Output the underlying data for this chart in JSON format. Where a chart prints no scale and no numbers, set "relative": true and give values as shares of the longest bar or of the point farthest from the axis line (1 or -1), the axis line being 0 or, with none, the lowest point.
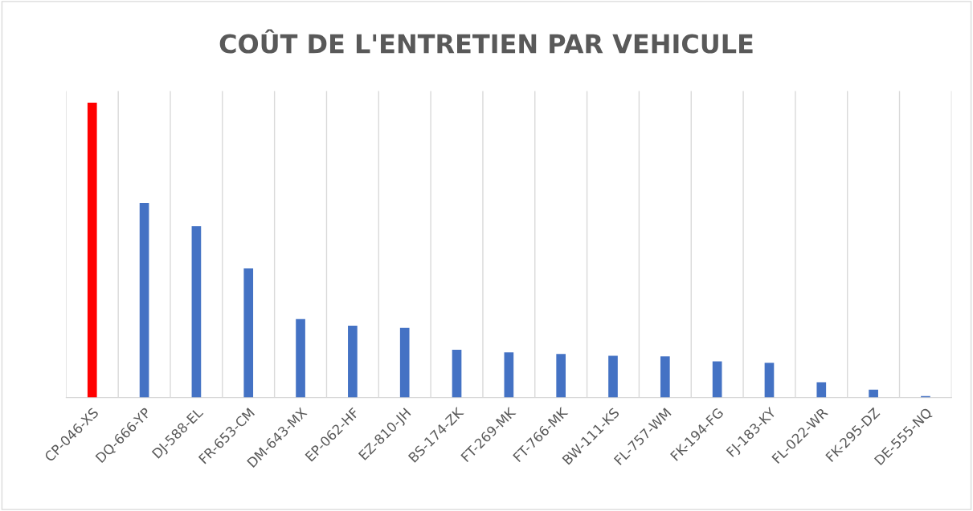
{
  "chart_data": {
    "type": "bar",
    "title": "COÛT DE L'ENTRETIEN PAR VEHICULE",
    "relative": true,
    "grid": "x",
    "categories": [
      "CP-046-XS",
      "DQ-666-YP",
      "DJ-588-EL",
      "FR-653-CM",
      "DM-643-MX",
      "EP-062-HF",
      "EZ-810-JH",
      "BS-174-ZK",
      "FT-269-MK",
      "FT-766-MK",
      "BW-111-KS",
      "FL-757-WM",
      "FK-194-FG",
      "FJ-183-KY",
      "FL-022-WR",
      "FK-295-DZ",
      "DE-555-NQ"
    ],
    "values": [
      1,
      0.66,
      0.581,
      0.438,
      0.266,
      0.244,
      0.236,
      0.162,
      0.153,
      0.148,
      0.142,
      0.14,
      0.123,
      0.118,
      0.052,
      0.027,
      0.005
    ],
    "colors": [
      "#ff0000",
      "#4472c4",
      "#4472c4",
      "#4472c4",
      "#4472c4",
      "#4472c4",
      "#4472c4",
      "#4472c4",
      "#4472c4",
      "#4472c4",
      "#4472c4",
      "#4472c4",
      "#4472c4",
      "#4472c4",
      "#4472c4",
      "#4472c4",
      "#4472c4"
    ]
  }
}
